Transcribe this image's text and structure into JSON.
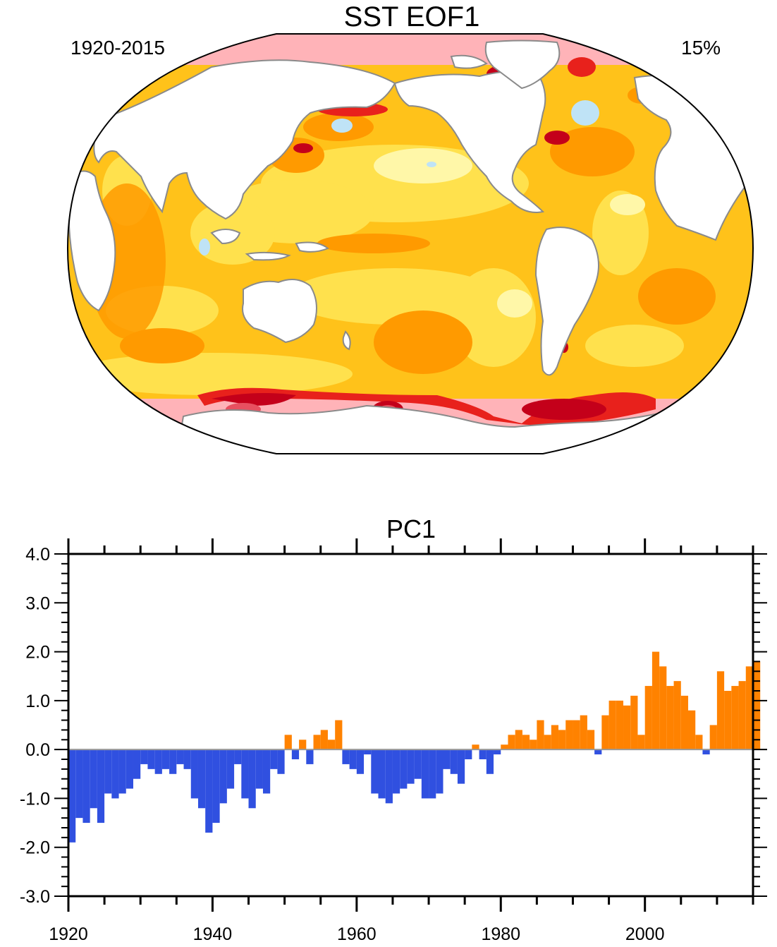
{
  "map": {
    "title": "SST EOF1",
    "period": "1920-2015",
    "variance": "15%",
    "colors": {
      "land": "#ffffff",
      "coast": "#8a8a8a",
      "border": "#000000",
      "light_blue": "#bfe3f6",
      "pale_yellow": "#fff7a8",
      "yellow": "#ffe14d",
      "gold": "#ffc21a",
      "orange": "#ff9a00",
      "red": "#e8211c",
      "dark_red": "#c4001a",
      "rose": "#e85060",
      "pink": "#ffb3b8"
    }
  },
  "chart_data": {
    "type": "bar",
    "title": "PC1",
    "xlabel": "",
    "ylabel": "",
    "xlim": [
      1920,
      2015
    ],
    "ylim": [
      -3.0,
      4.0
    ],
    "x_ticks": [
      1920,
      1940,
      1960,
      1980,
      2000
    ],
    "x_tick_labels": [
      "1920",
      "1940",
      "1960",
      "1980",
      "2000"
    ],
    "y_ticks": [
      -3.0,
      -2.0,
      -1.0,
      0.0,
      1.0,
      2.0,
      3.0,
      4.0
    ],
    "y_tick_labels": [
      "-3.0",
      "-2.0",
      "-1.0",
      "0.0",
      "1.0",
      "2.0",
      "3.0",
      "4.0"
    ],
    "positive_color": "#ff8200",
    "negative_color": "#3050e0",
    "grid": false,
    "x": [
      1920,
      1921,
      1922,
      1923,
      1924,
      1925,
      1926,
      1927,
      1928,
      1929,
      1930,
      1931,
      1932,
      1933,
      1934,
      1935,
      1936,
      1937,
      1938,
      1939,
      1940,
      1941,
      1942,
      1943,
      1944,
      1945,
      1946,
      1947,
      1948,
      1949,
      1950,
      1951,
      1952,
      1953,
      1954,
      1955,
      1956,
      1957,
      1958,
      1959,
      1960,
      1961,
      1962,
      1963,
      1964,
      1965,
      1966,
      1967,
      1968,
      1969,
      1970,
      1971,
      1972,
      1973,
      1974,
      1975,
      1976,
      1977,
      1978,
      1979,
      1980,
      1981,
      1982,
      1983,
      1984,
      1985,
      1986,
      1987,
      1988,
      1989,
      1990,
      1991,
      1992,
      1993,
      1994,
      1995,
      1996,
      1997,
      1998,
      1999,
      2000,
      2001,
      2002,
      2003,
      2004,
      2005,
      2006,
      2007,
      2008,
      2009,
      2010,
      2011,
      2012,
      2013,
      2014,
      2015
    ],
    "values": [
      -1.9,
      -1.4,
      -1.5,
      -1.2,
      -1.5,
      -0.9,
      -1.0,
      -0.9,
      -0.8,
      -0.6,
      -0.3,
      -0.4,
      -0.5,
      -0.4,
      -0.5,
      -0.3,
      -0.4,
      -1.0,
      -1.2,
      -1.7,
      -1.5,
      -1.1,
      -0.8,
      -0.3,
      -1.0,
      -1.2,
      -0.8,
      -0.9,
      -0.4,
      -0.5,
      0.3,
      -0.2,
      0.2,
      -0.3,
      0.3,
      0.4,
      0.2,
      0.6,
      -0.3,
      -0.4,
      -0.5,
      -0.1,
      -0.9,
      -1.0,
      -1.1,
      -0.9,
      -0.8,
      -0.7,
      -0.6,
      -1.0,
      -1.0,
      -0.9,
      -0.4,
      -0.5,
      -0.7,
      -0.2,
      0.1,
      -0.2,
      -0.5,
      -0.1,
      0.1,
      0.3,
      0.4,
      0.3,
      0.2,
      0.6,
      0.3,
      0.5,
      0.4,
      0.6,
      0.6,
      0.7,
      0.4,
      -0.1,
      0.7,
      1.0,
      1.0,
      0.9,
      1.1,
      0.3,
      1.3,
      2.0,
      1.7,
      1.3,
      1.4,
      1.1,
      0.8,
      0.3,
      -0.1,
      0.5,
      1.6,
      1.2,
      1.3,
      1.4,
      1.7,
      1.8
    ]
  }
}
